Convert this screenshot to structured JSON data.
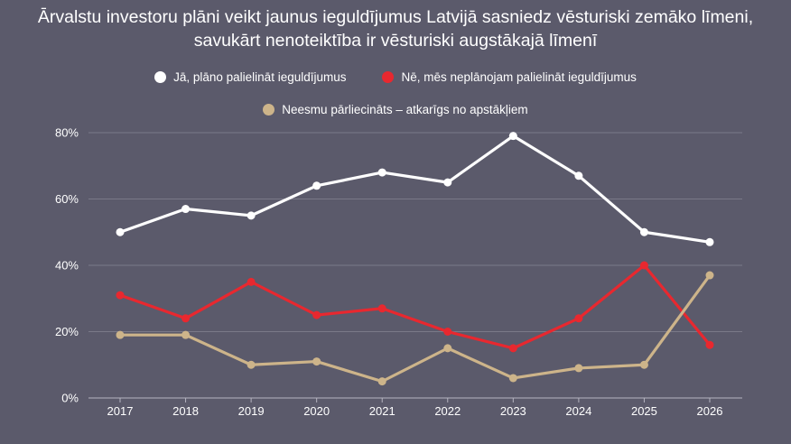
{
  "title_line1": "Ārvalstu investoru plāni veikt jaunus ieguldījumus Latvijā sasniedz vēsturiski zemāko līmeni,",
  "title_line2": "savukārt nenoteiktība ir vēsturiski augstākajā līmenī",
  "colors": {
    "background": "#5b5a6b",
    "series_yes": "#ffffff",
    "series_no": "#e8282f",
    "series_unsure": "#cdb48a",
    "grid": "#7a7988",
    "axis": "#b5b4c0"
  },
  "chart_data": {
    "type": "line",
    "x": [
      "2017",
      "2018",
      "2019",
      "2020",
      "2021",
      "2022",
      "2023",
      "2024",
      "2025",
      "2026"
    ],
    "ylim": [
      0,
      80
    ],
    "y_ticks": [
      "0%",
      "20%",
      "40%",
      "60%",
      "80%"
    ],
    "grid": true,
    "legend_placement": "top",
    "series": [
      {
        "name": "Jā, plāno palielināt ieguldījumus",
        "color": "#ffffff",
        "values": [
          50,
          57,
          55,
          64,
          68,
          65,
          79,
          67,
          50,
          47
        ]
      },
      {
        "name": "Nē, mēs neplānojam palielināt ieguldījumus",
        "color": "#e8282f",
        "values": [
          31,
          24,
          35,
          25,
          27,
          20,
          15,
          24,
          40,
          16
        ]
      },
      {
        "name": "Neesmu pārliecināts – atkarīgs no apstākļiem",
        "color": "#cdb48a",
        "values": [
          19,
          19,
          10,
          11,
          5,
          15,
          6,
          9,
          10,
          37
        ]
      }
    ]
  }
}
